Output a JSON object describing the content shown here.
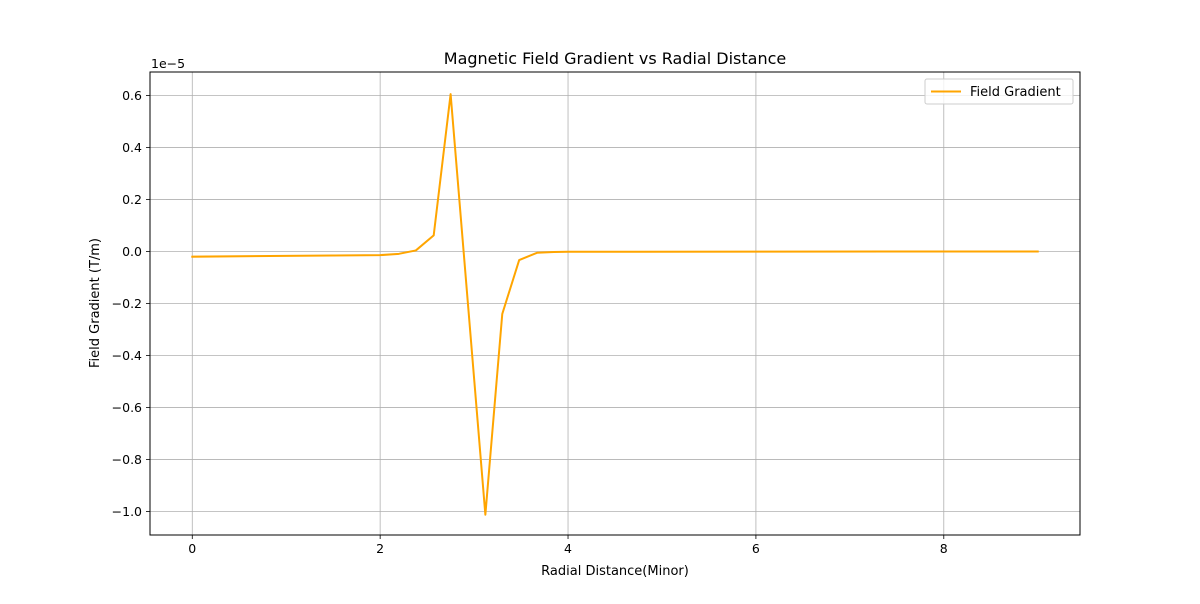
{
  "chart_data": {
    "type": "line",
    "title": "Magnetic Field Gradient vs Radial Distance",
    "xlabel": "Radial Distance(Minor)",
    "ylabel": "Field Gradient (T/m)",
    "y_offset_label": "1e−5",
    "y_scale_factor": 1e-05,
    "xlim": [
      -0.45,
      9.45
    ],
    "ylim": [
      -1.09,
      0.69
    ],
    "x_ticks": [
      0,
      2,
      4,
      6,
      8
    ],
    "x_tick_labels": [
      "0",
      "2",
      "4",
      "6",
      "8"
    ],
    "y_ticks": [
      0.6,
      0.4,
      0.2,
      0.0,
      -0.2,
      -0.4,
      -0.6,
      -0.8,
      -1.0
    ],
    "y_tick_labels": [
      "0.6",
      "0.4",
      "0.2",
      "0.0",
      "−0.2",
      "−0.4",
      "−0.6",
      "−0.8",
      "−1.0"
    ],
    "grid": true,
    "legend_position": "top-right",
    "series": [
      {
        "name": "Field Gradient",
        "color": "#ffa500",
        "x": [
          0,
          2.0,
          2.2,
          2.38,
          2.57,
          2.75,
          3.12,
          3.3,
          3.48,
          3.67,
          3.85,
          4.0,
          6.0,
          8.0,
          9.0
        ],
        "y": [
          -0.02,
          -0.014,
          -0.009,
          0.004,
          0.062,
          0.605,
          -1.012,
          -0.24,
          -0.033,
          -0.005,
          -0.002,
          -0.001,
          -0.0005,
          -0.0002,
          -0.0001
        ]
      }
    ]
  }
}
